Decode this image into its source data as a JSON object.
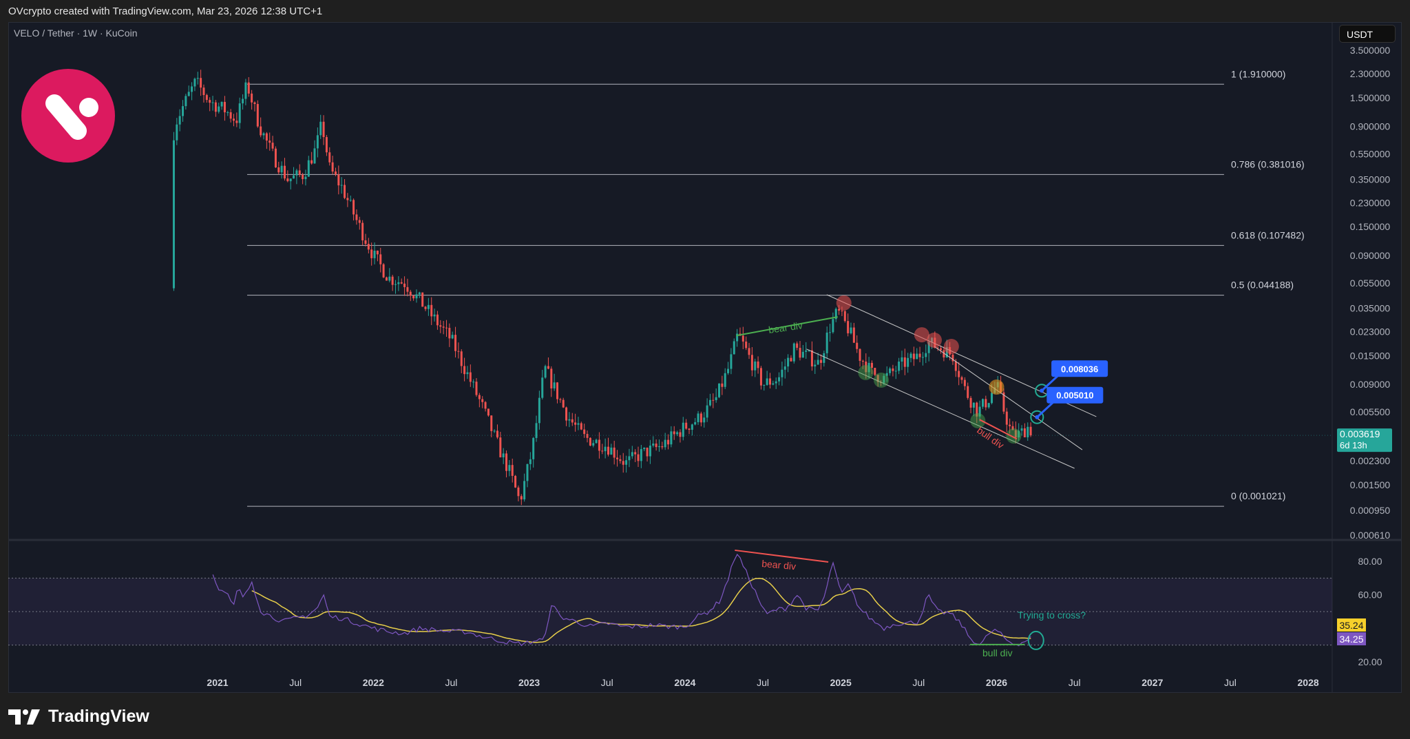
{
  "header": {
    "attribution": "OVcrypto created with TradingView.com, Mar 23, 2026 12:38 UTC+1"
  },
  "symbol": {
    "title": "VELO / Tether · 1W · KuCoin",
    "currency": "USDT"
  },
  "footer": {
    "brand": "TradingView"
  },
  "colors": {
    "bg": "#161a25",
    "up": "#26a69a",
    "down": "#ef5350",
    "rsi": "#7e57c2",
    "rsi_ma": "#e8cf4a",
    "fib": "#b2b5be",
    "callout": "#2962ff",
    "brand": "#dc1a5f"
  },
  "chart_data": {
    "type": "candlestick",
    "scale": "log",
    "price_ticks": [
      "3.500000",
      "2.300000",
      "1.500000",
      "0.900000",
      "0.550000",
      "0.350000",
      "0.230000",
      "0.150000",
      "0.090000",
      "0.055000",
      "0.035000",
      "0.023000",
      "0.015000",
      "0.009000",
      "0.005500",
      "0.002300",
      "0.001500",
      "0.000950",
      "0.000610"
    ],
    "time_ticks": [
      {
        "t": 2021,
        "label": "2021"
      },
      {
        "t": 2021.5,
        "label": "Jul"
      },
      {
        "t": 2022,
        "label": "2022"
      },
      {
        "t": 2022.5,
        "label": "Jul"
      },
      {
        "t": 2023,
        "label": "2023"
      },
      {
        "t": 2023.5,
        "label": "Jul"
      },
      {
        "t": 2024,
        "label": "2024"
      },
      {
        "t": 2024.5,
        "label": "Jul"
      },
      {
        "t": 2025,
        "label": "2025"
      },
      {
        "t": 2025.5,
        "label": "Jul"
      },
      {
        "t": 2026,
        "label": "2026"
      },
      {
        "t": 2026.5,
        "label": "Jul"
      },
      {
        "t": 2027,
        "label": "2027"
      },
      {
        "t": 2027.5,
        "label": "Jul"
      },
      {
        "t": 2028,
        "label": "2028"
      }
    ],
    "last_price": {
      "value": "0.003619",
      "countdown": "6d 13h"
    },
    "price_path": [
      [
        2020.7,
        0.05
      ],
      [
        2020.72,
        0.9
      ],
      [
        2020.78,
        1.3
      ],
      [
        2020.86,
        2.0
      ],
      [
        2020.95,
        1.4
      ],
      [
        2021.05,
        1.2
      ],
      [
        2021.12,
        1.0
      ],
      [
        2021.19,
        1.9
      ],
      [
        2021.27,
        0.9
      ],
      [
        2021.35,
        0.55
      ],
      [
        2021.45,
        0.35
      ],
      [
        2021.55,
        0.38
      ],
      [
        2021.63,
        0.6
      ],
      [
        2021.67,
        0.95
      ],
      [
        2021.72,
        0.42
      ],
      [
        2021.8,
        0.3
      ],
      [
        2021.9,
        0.16
      ],
      [
        2022.0,
        0.09
      ],
      [
        2022.1,
        0.06
      ],
      [
        2022.2,
        0.055
      ],
      [
        2022.3,
        0.04
      ],
      [
        2022.4,
        0.028
      ],
      [
        2022.5,
        0.02
      ],
      [
        2022.6,
        0.011
      ],
      [
        2022.7,
        0.006
      ],
      [
        2022.8,
        0.003
      ],
      [
        2022.88,
        0.0018
      ],
      [
        2022.94,
        0.0011
      ],
      [
        2023.02,
        0.0028
      ],
      [
        2023.1,
        0.012
      ],
      [
        2023.15,
        0.009
      ],
      [
        2023.25,
        0.005
      ],
      [
        2023.35,
        0.0035
      ],
      [
        2023.5,
        0.003
      ],
      [
        2023.62,
        0.0022
      ],
      [
        2023.72,
        0.0026
      ],
      [
        2023.85,
        0.003
      ],
      [
        2024.0,
        0.0042
      ],
      [
        2024.1,
        0.005
      ],
      [
        2024.2,
        0.007
      ],
      [
        2024.28,
        0.012
      ],
      [
        2024.34,
        0.022
      ],
      [
        2024.42,
        0.014
      ],
      [
        2024.5,
        0.009
      ],
      [
        2024.6,
        0.01
      ],
      [
        2024.7,
        0.017
      ],
      [
        2024.78,
        0.015
      ],
      [
        2024.86,
        0.013
      ],
      [
        2024.93,
        0.025
      ],
      [
        2024.98,
        0.033
      ],
      [
        2025.05,
        0.024
      ],
      [
        2025.12,
        0.015
      ],
      [
        2025.2,
        0.011
      ],
      [
        2025.28,
        0.01
      ],
      [
        2025.4,
        0.013
      ],
      [
        2025.5,
        0.015
      ],
      [
        2025.56,
        0.019
      ],
      [
        2025.65,
        0.017
      ],
      [
        2025.72,
        0.015
      ],
      [
        2025.8,
        0.008
      ],
      [
        2025.88,
        0.0055
      ],
      [
        2025.95,
        0.007
      ],
      [
        2026.0,
        0.009
      ],
      [
        2026.05,
        0.0055
      ],
      [
        2026.1,
        0.0036
      ],
      [
        2026.15,
        0.0037
      ],
      [
        2026.2,
        0.0042
      ],
      [
        2026.22,
        0.003619
      ]
    ],
    "fib_levels": [
      {
        "price": 1.91,
        "label": "1 (1.910000)"
      },
      {
        "price": 0.381016,
        "label": "0.786 (0.381016)"
      },
      {
        "price": 0.107482,
        "label": "0.618 (0.107482)"
      },
      {
        "price": 0.044188,
        "label": "0.5 (0.044188)"
      },
      {
        "price": 0.001021,
        "label": "0 (0.001021)"
      }
    ],
    "fib_range": [
      2021.19,
      2027.46
    ],
    "trendlines": [
      [
        [
          2024.91,
          0.0446
        ],
        [
          2026.64,
          0.00506
        ]
      ],
      [
        [
          2024.78,
          0.0169
        ],
        [
          2026.5,
          0.00201
        ]
      ],
      [
        [
          2025.6,
          0.0177
        ],
        [
          2026.55,
          0.0028
        ]
      ]
    ],
    "markers": {
      "red": [
        [
          2025.02,
          0.0385
        ],
        [
          2025.52,
          0.0218
        ],
        [
          2025.6,
          0.0198
        ],
        [
          2025.71,
          0.0177
        ]
      ],
      "green": [
        [
          2025.16,
          0.0111
        ],
        [
          2025.26,
          0.0097
        ],
        [
          2025.88,
          0.0047
        ],
        [
          2026.11,
          0.00358
        ]
      ],
      "orange": [
        [
          2026.0,
          0.00857
        ]
      ]
    },
    "callouts": [
      {
        "t": 2026.29,
        "price": 0.008036,
        "label": "0.008036"
      },
      {
        "t": 2026.26,
        "price": 0.00501,
        "label": "0.005010"
      }
    ],
    "price_annotations": {
      "bear_div": {
        "from": [
          2024.33,
          0.0215
        ],
        "to": [
          2024.98,
          0.03
        ],
        "label": "bear div"
      },
      "bull_div": {
        "from": [
          2025.89,
          0.0048
        ],
        "to": [
          2026.13,
          0.0034
        ],
        "label": "bull div"
      }
    },
    "rsi": {
      "ticks": [
        "80.00",
        "60.00",
        "20.00"
      ],
      "bands": [
        70,
        50,
        30
      ],
      "value": "34.25",
      "ma_value": "35.24",
      "path": [
        [
          2020.97,
          72
        ],
        [
          2021.02,
          62
        ],
        [
          2021.06,
          61
        ],
        [
          2021.1,
          52
        ],
        [
          2021.13,
          64
        ],
        [
          2021.17,
          58
        ],
        [
          2021.22,
          68
        ],
        [
          2021.28,
          50
        ],
        [
          2021.35,
          47
        ],
        [
          2021.42,
          44
        ],
        [
          2021.5,
          46
        ],
        [
          2021.58,
          48
        ],
        [
          2021.64,
          52
        ],
        [
          2021.68,
          60
        ],
        [
          2021.72,
          47
        ],
        [
          2021.8,
          46
        ],
        [
          2021.9,
          43
        ],
        [
          2022.0,
          40
        ],
        [
          2022.1,
          38
        ],
        [
          2022.2,
          37
        ],
        [
          2022.3,
          40
        ],
        [
          2022.4,
          39
        ],
        [
          2022.5,
          38
        ],
        [
          2022.6,
          38
        ],
        [
          2022.7,
          35
        ],
        [
          2022.8,
          33
        ],
        [
          2022.9,
          31
        ],
        [
          2022.98,
          31
        ],
        [
          2023.05,
          33
        ],
        [
          2023.1,
          33
        ],
        [
          2023.14,
          55
        ],
        [
          2023.2,
          47
        ],
        [
          2023.3,
          44
        ],
        [
          2023.4,
          41
        ],
        [
          2023.5,
          43
        ],
        [
          2023.6,
          41
        ],
        [
          2023.7,
          41
        ],
        [
          2023.8,
          42
        ],
        [
          2023.9,
          41
        ],
        [
          2024.0,
          41
        ],
        [
          2024.08,
          47
        ],
        [
          2024.15,
          50
        ],
        [
          2024.22,
          56
        ],
        [
          2024.28,
          70
        ],
        [
          2024.33,
          86
        ],
        [
          2024.38,
          76
        ],
        [
          2024.45,
          62
        ],
        [
          2024.52,
          48
        ],
        [
          2024.58,
          51
        ],
        [
          2024.65,
          52
        ],
        [
          2024.72,
          60
        ],
        [
          2024.78,
          52
        ],
        [
          2024.85,
          50
        ],
        [
          2024.9,
          60
        ],
        [
          2024.95,
          80
        ],
        [
          2025.0,
          60
        ],
        [
          2025.05,
          66
        ],
        [
          2025.12,
          52
        ],
        [
          2025.2,
          45
        ],
        [
          2025.28,
          40
        ],
        [
          2025.35,
          43
        ],
        [
          2025.42,
          43
        ],
        [
          2025.5,
          44
        ],
        [
          2025.56,
          60
        ],
        [
          2025.62,
          50
        ],
        [
          2025.7,
          49
        ],
        [
          2025.77,
          43
        ],
        [
          2025.83,
          34
        ],
        [
          2025.9,
          30
        ],
        [
          2025.95,
          37
        ],
        [
          2026.0,
          39
        ],
        [
          2026.05,
          34
        ],
        [
          2026.1,
          31
        ],
        [
          2026.15,
          31
        ],
        [
          2026.22,
          34.25
        ]
      ],
      "annotations": {
        "bear_div": {
          "from": [
            2024.32,
            86.6
          ],
          "to": [
            2024.92,
            79.6
          ],
          "label": "bear div"
        },
        "bull_div": {
          "from": [
            2025.83,
            30.3
          ],
          "to": [
            2026.18,
            30.3
          ],
          "label": "bull div"
        },
        "question": {
          "at": [
            2026.2,
            34
          ],
          "label": "Trying to cross?"
        }
      }
    }
  }
}
